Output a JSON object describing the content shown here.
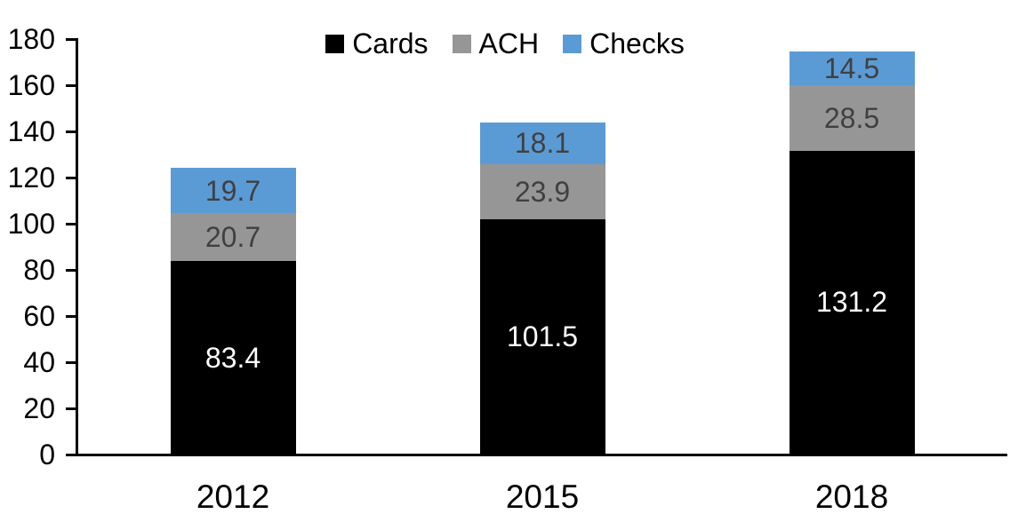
{
  "chart_data": {
    "type": "bar",
    "stacked": true,
    "title": "",
    "categories": [
      "2012",
      "2015",
      "2018"
    ],
    "series": [
      {
        "name": "Cards",
        "color": "#000000",
        "label_color": "#FFFFFF",
        "values": [
          83.4,
          101.5,
          131.2
        ]
      },
      {
        "name": "ACH",
        "color": "#969696",
        "label_color": "#404040",
        "values": [
          20.7,
          23.9,
          28.5
        ]
      },
      {
        "name": "Checks",
        "color": "#5B9BD5",
        "label_color": "#404040",
        "values": [
          19.7,
          18.1,
          14.5
        ]
      }
    ],
    "ylim": [
      0,
      180
    ],
    "ytick_step": 20,
    "ytick_labels": [
      "0",
      "20",
      "40",
      "60",
      "80",
      "100",
      "120",
      "140",
      "160",
      "180"
    ],
    "legend_entries": [
      "Cards",
      "ACH",
      "Checks"
    ],
    "legend_position": "top-center",
    "grid": false,
    "axis_color": "#000000",
    "background_color": "#FFFFFF"
  }
}
